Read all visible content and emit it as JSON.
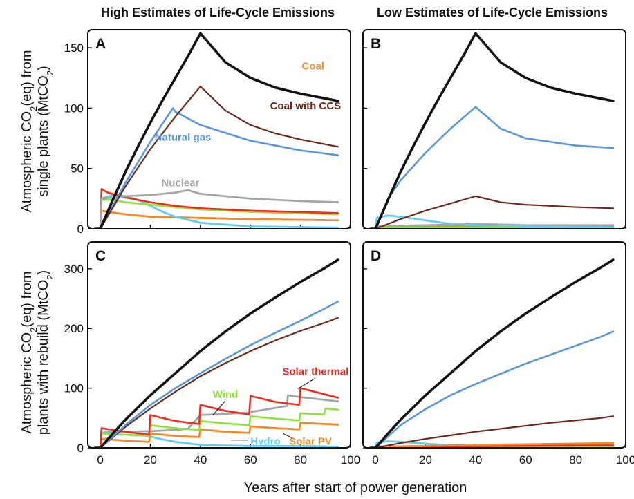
{
  "column_titles": [
    "High Estimates of Life-Cycle Emissions",
    "Low Estimates of Life-Cycle Emissions"
  ],
  "ylabel_top": {
    "line1_pre": "Atmospheric CO",
    "line1_sub": "2",
    "line1_post": "(eq) from",
    "line2_pre": "single plants (MtCO",
    "line2_sub": "2",
    "line2_post": ")"
  },
  "ylabel_bottom": {
    "line1_pre": "Atmospheric CO",
    "line1_sub": "2",
    "line1_post": "(eq) from",
    "line2_pre": "plants with rebuild (MtCO",
    "line2_sub": "2",
    "line2_post": ")"
  },
  "xlabel": "Years after start of power generation",
  "colors": {
    "coal": "#111111",
    "coal_ccs": "#6b2a1c",
    "natural_gas": "#5b97d6",
    "nuclear": "#a6a6a6",
    "solar_thermal": "#ee2b1f",
    "wind": "#8fe23a",
    "hydro": "#62cdf0",
    "solar_pv": "#f2892a"
  },
  "chart_data": [
    {
      "panel": "A",
      "type": "line",
      "xlim": [
        -5,
        100
      ],
      "ylim": [
        0,
        165
      ],
      "xticks": [
        0,
        20,
        40,
        60,
        80,
        100
      ],
      "yticks": [
        0,
        50,
        100,
        150
      ],
      "labels": [
        {
          "text": "Coal",
          "color": "coal_label"
        },
        {
          "text": "Coal with CCS",
          "color": "coal_ccs"
        },
        {
          "text": "Natural gas",
          "color": "natural_gas"
        },
        {
          "text": "Nuclear",
          "color": "nuclear"
        }
      ],
      "series": [
        {
          "key": "solar_pv",
          "x": [
            -2,
            0,
            0.5,
            3,
            10,
            20,
            40,
            60,
            95
          ],
          "y": [
            0,
            0,
            15,
            14,
            12,
            10,
            9,
            8,
            7
          ]
        },
        {
          "key": "hydro",
          "x": [
            -2,
            0,
            0.5,
            5,
            10,
            15,
            20,
            25,
            30,
            40,
            60,
            95
          ],
          "y": [
            0,
            0,
            25,
            28,
            27,
            24,
            19,
            14,
            10,
            5,
            2,
            1
          ]
        },
        {
          "key": "wind",
          "x": [
            -2,
            0,
            0.5,
            5,
            10,
            20,
            30,
            40,
            60,
            95
          ],
          "y": [
            0,
            0,
            24,
            24,
            22,
            20,
            18,
            16,
            14,
            12
          ]
        },
        {
          "key": "solar_thermal",
          "x": [
            -2,
            0,
            0.5,
            3,
            10,
            20,
            30,
            40,
            60,
            95
          ],
          "y": [
            0,
            0,
            33,
            30,
            26,
            22,
            19,
            17,
            15,
            13
          ]
        },
        {
          "key": "nuclear",
          "x": [
            -2,
            0,
            0.5,
            5,
            10,
            20,
            30,
            35,
            40,
            60,
            80,
            95
          ],
          "y": [
            0,
            0,
            25,
            26,
            27,
            28,
            30,
            32,
            29,
            25,
            23,
            22
          ]
        },
        {
          "key": "natural_gas",
          "x": [
            -2,
            0,
            10,
            20,
            29,
            30,
            40,
            60,
            80,
            95
          ],
          "y": [
            0,
            0,
            38,
            72,
            100,
            97,
            86,
            73,
            65,
            61
          ]
        },
        {
          "key": "coal_ccs",
          "x": [
            -2,
            0,
            10,
            20,
            30,
            40,
            50,
            60,
            70,
            80,
            90,
            95
          ],
          "y": [
            0,
            0,
            35,
            66,
            93,
            118,
            98,
            86,
            79,
            74,
            70,
            68
          ]
        },
        {
          "key": "coal",
          "x": [
            -2,
            0,
            5,
            10,
            15,
            20,
            25,
            30,
            35,
            40,
            50,
            60,
            70,
            80,
            90,
            95
          ],
          "y": [
            0,
            0,
            24,
            47,
            68,
            88,
            107,
            125,
            143,
            162,
            138,
            125,
            117,
            112,
            108,
            106
          ]
        }
      ]
    },
    {
      "panel": "B",
      "type": "line",
      "xlim": [
        -5,
        100
      ],
      "ylim": [
        0,
        165
      ],
      "xticks": [
        0,
        20,
        40,
        60,
        80,
        100
      ],
      "yticks": [
        0,
        50,
        100,
        150
      ],
      "labels": [],
      "series": [
        {
          "key": "solar_pv",
          "x": [
            -2,
            0,
            0.5,
            10,
            40,
            95
          ],
          "y": [
            0,
            0,
            2,
            2,
            2,
            2
          ]
        },
        {
          "key": "nuclear",
          "x": [
            -2,
            0,
            0.5,
            20,
            40,
            60,
            95
          ],
          "y": [
            0,
            0,
            2,
            3,
            4,
            3,
            3
          ]
        },
        {
          "key": "solar_thermal",
          "x": [
            -2,
            0,
            0.5,
            20,
            40,
            95
          ],
          "y": [
            0,
            0,
            1,
            1,
            1,
            1
          ]
        },
        {
          "key": "wind",
          "x": [
            -2,
            0,
            0.5,
            20,
            40,
            95
          ],
          "y": [
            0,
            0,
            1,
            1,
            1,
            1
          ]
        },
        {
          "key": "hydro",
          "x": [
            -2,
            0,
            0.5,
            5,
            10,
            20,
            30,
            40,
            60,
            95
          ],
          "y": [
            0,
            0,
            9,
            11,
            10,
            7,
            4,
            3,
            2,
            1
          ]
        },
        {
          "key": "coal_ccs",
          "x": [
            -2,
            0,
            10,
            20,
            30,
            40,
            50,
            60,
            80,
            95
          ],
          "y": [
            0,
            0,
            8,
            15,
            21,
            27,
            22,
            20,
            18,
            17
          ]
        },
        {
          "key": "natural_gas",
          "x": [
            -2,
            0,
            5,
            10,
            20,
            30,
            40,
            50,
            60,
            80,
            95
          ],
          "y": [
            0,
            0,
            25,
            40,
            63,
            83,
            101,
            83,
            75,
            69,
            67
          ]
        },
        {
          "key": "coal",
          "x": [
            -2,
            0,
            5,
            10,
            15,
            20,
            25,
            30,
            35,
            40,
            50,
            60,
            70,
            80,
            90,
            95
          ],
          "y": [
            0,
            0,
            24,
            47,
            68,
            88,
            107,
            125,
            143,
            162,
            138,
            125,
            117,
            112,
            108,
            106
          ]
        }
      ]
    },
    {
      "panel": "C",
      "type": "line",
      "xlim": [
        -5,
        100
      ],
      "ylim": [
        0,
        345
      ],
      "xticks": [
        0,
        20,
        40,
        60,
        80,
        100
      ],
      "yticks": [
        0,
        100,
        200,
        300
      ],
      "labels": [
        {
          "text": "Solar thermal",
          "color": "solar_thermal"
        },
        {
          "text": "Wind",
          "color": "wind"
        },
        {
          "text": "Hydro",
          "color": "hydro"
        },
        {
          "text": "Solar PV",
          "color": "solar_pv"
        }
      ],
      "series": [
        {
          "key": "hydro",
          "x": [
            -2,
            0,
            0.5,
            5,
            10,
            15,
            20,
            25,
            30,
            40,
            60,
            80,
            95
          ],
          "y": [
            0,
            0,
            25,
            28,
            27,
            24,
            19,
            14,
            10,
            5,
            3,
            3,
            2
          ]
        },
        {
          "key": "solar_pv",
          "x": [
            -2,
            0,
            0.5,
            10,
            19.5,
            20,
            30,
            39.5,
            40,
            50,
            59.5,
            60,
            70,
            79.5,
            80,
            95
          ],
          "y": [
            0,
            0,
            15,
            12,
            10,
            24,
            20,
            18,
            31,
            27,
            25,
            36,
            33,
            31,
            42,
            39
          ]
        },
        {
          "key": "nuclear",
          "x": [
            -2,
            0,
            0.5,
            10,
            20,
            30,
            35,
            40,
            55,
            59.5,
            60,
            74.5,
            75,
            80,
            95
          ],
          "y": [
            0,
            0,
            25,
            27,
            28,
            30,
            32,
            55,
            58,
            59,
            60,
            70,
            88,
            85,
            78
          ]
        },
        {
          "key": "wind",
          "x": [
            -2,
            0,
            0.5,
            10,
            19.5,
            20,
            30,
            39.5,
            40,
            50,
            59.5,
            60,
            70,
            79.5,
            80,
            89.5,
            90,
            95
          ],
          "y": [
            0,
            0,
            24,
            22,
            20,
            38,
            33,
            30,
            45,
            41,
            38,
            53,
            49,
            46,
            58,
            56,
            66,
            64
          ]
        },
        {
          "key": "solar_thermal",
          "x": [
            -2,
            0,
            0.5,
            10,
            19.5,
            20,
            30,
            39.5,
            40,
            50,
            59.5,
            60,
            70,
            79.5,
            80,
            95
          ],
          "y": [
            0,
            0,
            33,
            27,
            22,
            55,
            45,
            40,
            72,
            62,
            56,
            87,
            77,
            72,
            100,
            84
          ]
        },
        {
          "key": "coal_ccs",
          "x": [
            -2,
            0,
            10,
            20,
            30,
            40,
            50,
            60,
            70,
            80,
            90,
            95
          ],
          "y": [
            0,
            0,
            35,
            66,
            94,
            120,
            142,
            162,
            180,
            196,
            210,
            218
          ]
        },
        {
          "key": "natural_gas",
          "x": [
            -2,
            0,
            10,
            20,
            30,
            40,
            50,
            60,
            70,
            80,
            90,
            95
          ],
          "y": [
            0,
            0,
            38,
            72,
            100,
            125,
            149,
            172,
            193,
            213,
            234,
            245
          ]
        },
        {
          "key": "coal",
          "x": [
            -2,
            0,
            5,
            10,
            20,
            30,
            40,
            50,
            60,
            70,
            80,
            90,
            95
          ],
          "y": [
            0,
            0,
            24,
            47,
            88,
            125,
            162,
            195,
            225,
            252,
            278,
            302,
            315
          ]
        }
      ]
    },
    {
      "panel": "D",
      "type": "line",
      "xlim": [
        -5,
        100
      ],
      "ylim": [
        0,
        345
      ],
      "xticks": [
        0,
        20,
        40,
        60,
        80,
        100
      ],
      "yticks": [
        0,
        100,
        200,
        300
      ],
      "labels": [],
      "series": [
        {
          "key": "hydro",
          "x": [
            -2,
            0,
            0.5,
            5,
            10,
            20,
            30,
            40,
            60,
            95
          ],
          "y": [
            0,
            0,
            9,
            11,
            10,
            7,
            4,
            3,
            2,
            1
          ]
        },
        {
          "key": "wind",
          "x": [
            -2,
            0,
            0.5,
            40,
            95
          ],
          "y": [
            0,
            0,
            1,
            2,
            3
          ]
        },
        {
          "key": "nuclear",
          "x": [
            -2,
            0,
            0.5,
            40,
            95
          ],
          "y": [
            0,
            0,
            2,
            4,
            5
          ]
        },
        {
          "key": "solar_thermal",
          "x": [
            -2,
            0,
            0.5,
            40,
            95
          ],
          "y": [
            0,
            0,
            1,
            3,
            4
          ]
        },
        {
          "key": "solar_pv",
          "x": [
            -2,
            0,
            0.5,
            20,
            40,
            60,
            80,
            95
          ],
          "y": [
            0,
            0,
            2,
            3,
            5,
            6,
            7,
            8
          ]
        },
        {
          "key": "coal_ccs",
          "x": [
            -2,
            0,
            10,
            20,
            30,
            40,
            50,
            60,
            70,
            80,
            90,
            95
          ],
          "y": [
            0,
            0,
            8,
            15,
            21,
            27,
            32,
            37,
            42,
            46,
            50,
            53
          ]
        },
        {
          "key": "natural_gas",
          "x": [
            -2,
            0,
            10,
            20,
            30,
            40,
            50,
            60,
            70,
            80,
            90,
            95
          ],
          "y": [
            0,
            0,
            38,
            65,
            88,
            107,
            124,
            141,
            156,
            171,
            186,
            195
          ]
        },
        {
          "key": "coal",
          "x": [
            -2,
            0,
            5,
            10,
            20,
            30,
            40,
            50,
            60,
            70,
            80,
            90,
            95
          ],
          "y": [
            0,
            0,
            24,
            47,
            88,
            125,
            162,
            195,
            225,
            252,
            278,
            302,
            315
          ]
        }
      ]
    }
  ]
}
